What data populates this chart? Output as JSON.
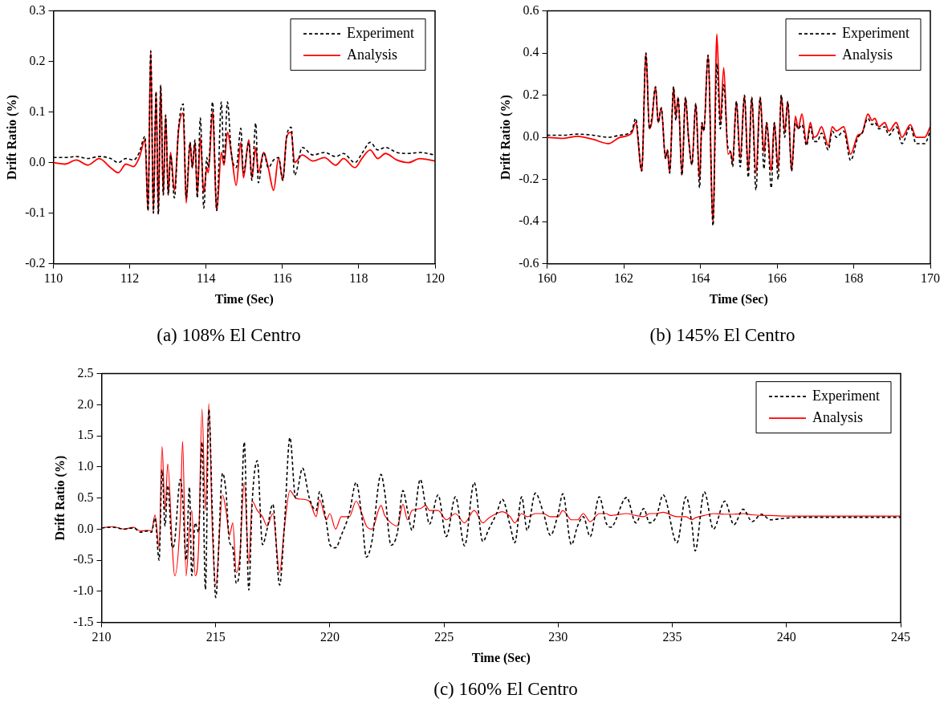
{
  "chart_data": [
    {
      "type": "line",
      "xlabel": "Time (Sec)",
      "ylabel": "Drift Ratio (%)",
      "annotations": [
        "(a) 108% El Centro"
      ],
      "xlim": [
        110,
        120
      ],
      "xticks": [
        110,
        112,
        114,
        116,
        118,
        120
      ],
      "ylim": [
        -0.2,
        0.3
      ],
      "yticks": [
        0.3,
        0.2,
        0.1,
        {
          "value": 0,
          "label": "0.0"
        },
        -0.1,
        -0.2
      ],
      "grid": false,
      "legend": "top right",
      "marker": "none",
      "x": [
        110,
        110.3,
        110.6,
        110.9,
        111.2,
        111.5,
        111.7,
        111.9,
        112.1,
        112.25,
        112.4,
        112.48,
        112.55,
        112.62,
        112.69,
        112.75,
        112.81,
        112.88,
        112.94,
        113.01,
        113.07,
        113.17,
        113.28,
        113.4,
        113.48,
        113.58,
        113.64,
        113.71,
        113.77,
        113.85,
        113.94,
        114.02,
        114.06,
        114.17,
        114.28,
        114.4,
        114.47,
        114.56,
        114.66,
        114.79,
        114.91,
        114.98,
        115.12,
        115.2,
        115.3,
        115.37,
        115.51,
        115.63,
        115.77,
        115.9,
        116.01,
        116.11,
        116.23,
        116.32,
        116.52,
        116.8,
        117.1,
        117.4,
        117.6,
        117.9,
        118.1,
        118.3,
        118.5,
        118.7,
        119,
        119.3,
        119.6,
        120
      ],
      "series": [
        {
          "name": "Experiment",
          "color": "#000000",
          "line_style": "dashed",
          "values": [
            0.01,
            0.01,
            0.012,
            0.008,
            0.012,
            0.008,
            0,
            0.008,
            0.005,
            0.02,
            0.052,
            -0.095,
            0.221,
            -0.1,
            0.14,
            -0.102,
            0.153,
            -0.064,
            0.094,
            -0.064,
            0.015,
            -0.07,
            0.069,
            0.116,
            -0.07,
            0.04,
            -0.01,
            0.045,
            -0.07,
            0.088,
            -0.09,
            0.01,
            -0.01,
            0.12,
            -0.095,
            0.12,
            0,
            0.12,
            0.02,
            -0.01,
            0.068,
            -0.02,
            0.04,
            -0.035,
            0.078,
            -0.04,
            0.02,
            -0.01,
            0.005,
            0.01,
            -0.035,
            0.05,
            0.07,
            -0.025,
            0.03,
            0.015,
            0.02,
            0.012,
            0.018,
            0,
            0.02,
            0.04,
            0.025,
            0.03,
            0.02,
            0.018,
            0.02,
            0.015
          ]
        },
        {
          "name": "Analysis",
          "color": "#ff0000",
          "line_style": "solid",
          "values": [
            0,
            -0.003,
            0.005,
            -0.005,
            0.008,
            -0.01,
            -0.02,
            -0.003,
            -0.008,
            0.01,
            0.045,
            -0.095,
            0.221,
            -0.1,
            0.14,
            -0.102,
            0.153,
            -0.064,
            0.094,
            -0.064,
            0.02,
            -0.055,
            0.065,
            0.098,
            -0.08,
            0.04,
            -0.01,
            0.04,
            -0.065,
            0.05,
            -0.06,
            -0.01,
            -0.02,
            0.1,
            -0.095,
            0.02,
            -0.005,
            0.06,
            0.02,
            -0.045,
            0.04,
            -0.03,
            0.045,
            -0.03,
            0.03,
            -0.02,
            0.02,
            -0.01,
            -0.055,
            0.01,
            -0.035,
            0.05,
            0.06,
            0,
            0.015,
            0.003,
            0.01,
            -0.005,
            0.008,
            -0.01,
            0.01,
            0.025,
            0.008,
            0.018,
            0.005,
            0,
            0.008,
            0.003
          ]
        }
      ]
    },
    {
      "type": "line",
      "xlabel": "Time (Sec)",
      "ylabel": "Drift Ratio (%)",
      "annotations": [
        "(b) 145% El Centro"
      ],
      "xlim": [
        160,
        170
      ],
      "xticks": [
        160,
        162,
        164,
        166,
        168,
        170
      ],
      "ylim": [
        -0.6,
        0.6
      ],
      "yticks": [
        0.6,
        0.4,
        0.2,
        {
          "value": 0,
          "label": "0.0"
        },
        -0.2,
        -0.4,
        -0.6
      ],
      "grid": false,
      "legend": "top right",
      "marker": "none",
      "x": [
        160,
        160.4,
        160.8,
        161.2,
        161.6,
        161.9,
        162.21,
        162.31,
        162.47,
        162.58,
        162.67,
        162.73,
        162.83,
        162.9,
        162.98,
        163.09,
        163.14,
        163.2,
        163.3,
        163.36,
        163.42,
        163.52,
        163.61,
        163.69,
        163.78,
        163.88,
        163.98,
        164.04,
        164.09,
        164.2,
        164.33,
        164.43,
        164.52,
        164.61,
        164.72,
        164.79,
        164.84,
        164.94,
        165.04,
        165.15,
        165.25,
        165.34,
        165.45,
        165.56,
        165.66,
        165.73,
        165.85,
        165.93,
        166.03,
        166.11,
        166.2,
        166.28,
        166.38,
        166.48,
        166.55,
        166.65,
        166.77,
        166.87,
        166.96,
        167.05,
        167.16,
        167.34,
        167.44,
        167.55,
        167.74,
        167.92,
        168.11,
        168.22,
        168.37,
        168.48,
        168.55,
        168.66,
        168.81,
        168.92,
        169.11,
        169.26,
        169.48,
        169.63,
        169.85,
        170
      ],
      "series": [
        {
          "name": "Experiment",
          "color": "#000000",
          "line_style": "dashed",
          "values": [
            0.01,
            0.01,
            0.015,
            0.01,
            0.0,
            0.01,
            0.03,
            0.09,
            -0.16,
            0.4,
            0.04,
            0.09,
            0.24,
            0.07,
            0.14,
            -0.1,
            -0.06,
            -0.17,
            0.24,
            0.08,
            0.19,
            -0.18,
            0.19,
            0,
            -0.13,
            0.16,
            -0.24,
            0.07,
            0.03,
            0.39,
            -0.42,
            0.35,
            0.04,
            0.25,
            -0.05,
            -0.07,
            -0.14,
            0.17,
            -0.14,
            0.2,
            -0.19,
            0.19,
            -0.25,
            0.19,
            -0.15,
            0.07,
            -0.24,
            0.07,
            -0.2,
            0.2,
            0,
            0.17,
            -0.16,
            0.07,
            0.04,
            0.06,
            -0.04,
            0.05,
            -0.02,
            -0.02,
            0.02,
            -0.06,
            0.03,
            0,
            0.03,
            -0.11,
            0,
            0.02,
            0.09,
            0.06,
            0.07,
            0.04,
            0.05,
            0.01,
            0.05,
            -0.03,
            0.05,
            -0.03,
            -0.03,
            0.03
          ]
        },
        {
          "name": "Analysis",
          "color": "#ff0000",
          "line_style": "solid",
          "values": [
            0,
            -0.005,
            0.005,
            -0.01,
            -0.03,
            0,
            0.02,
            0.07,
            -0.16,
            0.4,
            0.04,
            0.07,
            0.24,
            0.07,
            0.14,
            -0.1,
            -0.06,
            -0.17,
            0.24,
            0.1,
            0.19,
            -0.18,
            0.19,
            0,
            -0.13,
            0.16,
            -0.2,
            0.07,
            0.03,
            0.39,
            -0.4,
            0.49,
            0.07,
            0.33,
            -0.08,
            -0.07,
            -0.12,
            0.17,
            -0.1,
            0.2,
            -0.16,
            0.19,
            -0.17,
            0.19,
            -0.07,
            0.07,
            -0.16,
            0.07,
            -0.15,
            0.2,
            0.03,
            0.17,
            -0.16,
            0.1,
            0.04,
            0.11,
            -0.03,
            0.07,
            0,
            0.01,
            0.05,
            -0.04,
            0.05,
            0.03,
            0.05,
            -0.08,
            0.01,
            0.02,
            0.11,
            0.08,
            0.09,
            0.05,
            0.07,
            0.03,
            0.07,
            0,
            0.06,
            0,
            0,
            0.05
          ]
        }
      ]
    },
    {
      "type": "line",
      "xlabel": "Time (Sec)",
      "ylabel": "Drift Ratio (%)",
      "annotations": [
        "(c) 160% El Centro"
      ],
      "xlim": [
        210,
        245
      ],
      "xticks": [
        210,
        215,
        220,
        225,
        230,
        235,
        240,
        245
      ],
      "ylim": [
        -1.5,
        2.5
      ],
      "yticks": [
        2.5,
        {
          "value": 2,
          "label": "2.0"
        },
        1.5,
        {
          "value": 1,
          "label": "1.0"
        },
        0.5,
        {
          "value": 0,
          "label": "0.0"
        },
        -0.5,
        {
          "value": -1,
          "label": "-1.0"
        },
        -1.5
      ],
      "grid": false,
      "legend": "top right",
      "marker": "none",
      "x": [
        210,
        210.5,
        211,
        211.4,
        211.7,
        212,
        212.19,
        212.34,
        212.52,
        212.65,
        212.78,
        212.9,
        213.1,
        213.2,
        213.45,
        213.55,
        213.7,
        213.85,
        213.95,
        214.1,
        214.25,
        214.4,
        214.55,
        214.7,
        214.85,
        215,
        215.3,
        215.45,
        215.6,
        215.75,
        215.9,
        216.05,
        216.25,
        216.45,
        216.6,
        216.82,
        217.05,
        217.25,
        217.5,
        217.8,
        218,
        218.25,
        218.5,
        218.8,
        219.1,
        219.4,
        219.55,
        219.85,
        220,
        220.25,
        220.5,
        220.85,
        221.15,
        221.4,
        221.6,
        221.84,
        222.24,
        222.4,
        222.68,
        222.96,
        223.2,
        223.4,
        223.6,
        223.96,
        224.2,
        224.36,
        224.74,
        225.1,
        225.5,
        225.9,
        226.32,
        226.7,
        226.96,
        227.3,
        227.55,
        227.9,
        228.1,
        228.4,
        228.64,
        229,
        229.36,
        229.66,
        230,
        230.2,
        230.58,
        230.85,
        231.1,
        231.4,
        231.8,
        232.1,
        232.3,
        233,
        233.4,
        233.75,
        234,
        234.3,
        234.6,
        235.2,
        235.6,
        235.85,
        236,
        236.4,
        236.8,
        237.3,
        237.7,
        238.1,
        238.5,
        238.9,
        239.3,
        239.8,
        240.5,
        245
      ],
      "series": [
        {
          "name": "Experiment",
          "color": "#000000",
          "line_style": "dashed",
          "values": [
            0.02,
            0.03,
            0.0,
            0.02,
            -0.05,
            -0.03,
            -0.05,
            0.18,
            -0.5,
            0.95,
            0.05,
            0.7,
            -0.3,
            -0.2,
            0.8,
            0.5,
            -0.5,
            0.67,
            -0.75,
            0.1,
            -0.05,
            1.4,
            -0.97,
            1.92,
            0.3,
            -1.1,
            0.9,
            0.6,
            -0.2,
            -0.3,
            -0.87,
            -0.6,
            1.4,
            -0.98,
            0.45,
            1.1,
            -0.25,
            0,
            0.4,
            -0.9,
            0,
            1.47,
            0.5,
            0.98,
            0.5,
            0.3,
            0.6,
            0.1,
            -0.25,
            -0.3,
            -0.1,
            0.25,
            0.75,
            0.2,
            -0.45,
            -0.2,
            0.88,
            0.6,
            -0.26,
            -0.05,
            0.62,
            0.3,
            -0.02,
            0.8,
            0.35,
            0.08,
            0.55,
            -0.12,
            0.52,
            -0.27,
            0.75,
            -0.2,
            0,
            0.25,
            0.48,
            0.05,
            -0.22,
            0.52,
            -0.02,
            0.58,
            0.25,
            -0.1,
            0.25,
            0.57,
            -0.25,
            0.05,
            0.2,
            -0.12,
            0.52,
            0.1,
            0.03,
            0.51,
            0.1,
            0.33,
            0.1,
            0.2,
            0.55,
            -0.22,
            0.52,
            0.1,
            -0.35,
            0.6,
            0,
            0.45,
            0.07,
            0.32,
            0.12,
            0.24,
            0.15,
            0.17,
            0.19,
            0.19
          ]
        },
        {
          "name": "Analysis",
          "color": "#ff0000",
          "line_style": "solid",
          "values": [
            0.02,
            0.04,
            0.0,
            0.03,
            -0.03,
            -0.02,
            -0.03,
            0.23,
            -0.3,
            1.33,
            0.3,
            1.05,
            -0.3,
            -0.75,
            0.2,
            1.41,
            -0.75,
            0,
            0.3,
            -0.75,
            -0.3,
            1.93,
            0.3,
            2.02,
            0,
            -0.9,
            0.55,
            0.3,
            -0.1,
            0.1,
            -0.7,
            -0.45,
            0.75,
            -0.55,
            0.45,
            0.3,
            0.2,
            0.05,
            0.25,
            -0.7,
            0,
            0.62,
            0.5,
            0.48,
            0.45,
            0.2,
            0.47,
            0.15,
            0.25,
            0,
            0.2,
            0.2,
            0.45,
            0.25,
            0.05,
            0,
            0.38,
            0.22,
            0.1,
            0.05,
            0.4,
            0.15,
            0.3,
            0.33,
            0.38,
            0.3,
            0.3,
            0.15,
            0.25,
            0.1,
            0.3,
            0.1,
            0.18,
            0.25,
            0.28,
            0.2,
            0.1,
            0.25,
            0.2,
            0.25,
            0.25,
            0.2,
            0.2,
            0.3,
            0.15,
            0.15,
            0.25,
            0.12,
            0.25,
            0.25,
            0.22,
            0.25,
            0.22,
            0.2,
            0.25,
            0.25,
            0.27,
            0.2,
            0.2,
            0.15,
            0.18,
            0.22,
            0.25,
            0.24,
            0.24,
            0.25,
            0.23,
            0.22,
            0.22,
            0.21,
            0.21,
            0.21
          ]
        }
      ]
    }
  ]
}
